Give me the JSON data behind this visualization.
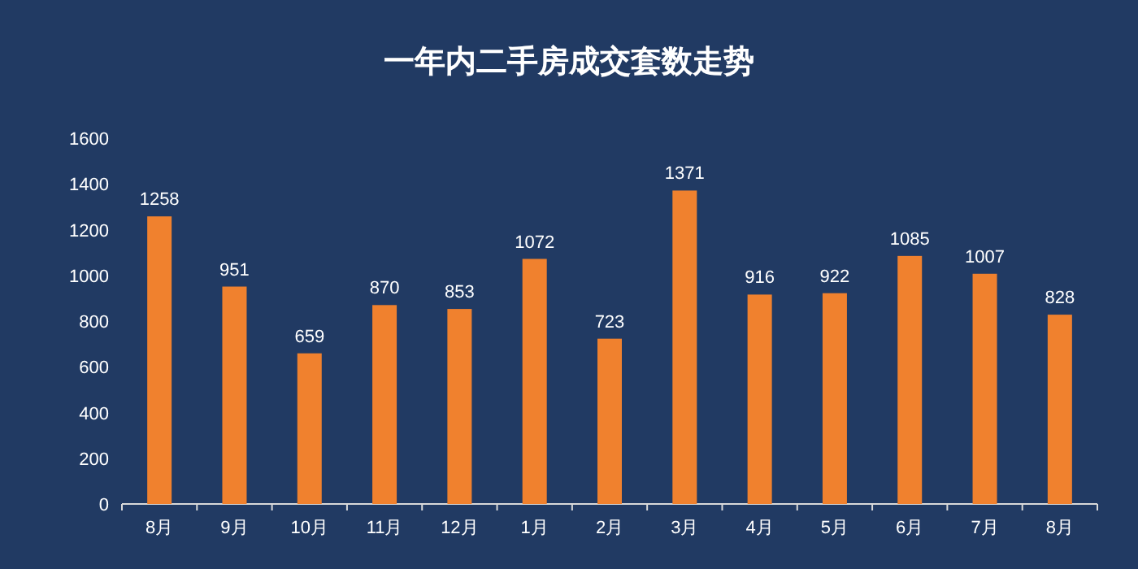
{
  "chart_data": {
    "type": "bar",
    "title": "一年内二手房成交套数走势",
    "categories": [
      "8月",
      "9月",
      "10月",
      "11月",
      "12月",
      "1月",
      "2月",
      "3月",
      "4月",
      "5月",
      "6月",
      "7月",
      "8月"
    ],
    "values": [
      1258,
      951,
      659,
      870,
      853,
      1072,
      723,
      1371,
      916,
      922,
      1085,
      1007,
      828
    ],
    "color": "#f0812e",
    "ylim": [
      0,
      1600
    ],
    "yticks": [
      0,
      200,
      400,
      600,
      800,
      1000,
      1200,
      1400,
      1600
    ],
    "grid": false,
    "data_labels": true
  }
}
